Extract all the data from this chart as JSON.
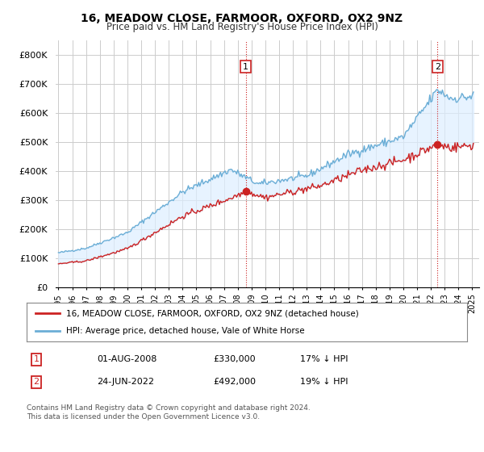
{
  "title": "16, MEADOW CLOSE, FARMOOR, OXFORD, OX2 9NZ",
  "subtitle": "Price paid vs. HM Land Registry's House Price Index (HPI)",
  "ylim": [
    0,
    850000
  ],
  "yticks": [
    0,
    100000,
    200000,
    300000,
    400000,
    500000,
    600000,
    700000,
    800000
  ],
  "ytick_labels": [
    "£0",
    "£100K",
    "£200K",
    "£300K",
    "£400K",
    "£500K",
    "£600K",
    "£700K",
    "£800K"
  ],
  "hpi_color": "#6baed6",
  "hpi_fill_color": "#ddeeff",
  "price_color": "#cc2222",
  "marker1_date": 2008.583,
  "marker1_price": 330000,
  "marker2_date": 2022.479,
  "marker2_price": 492000,
  "legend_line1": "16, MEADOW CLOSE, FARMOOR, OXFORD, OX2 9NZ (detached house)",
  "legend_line2": "HPI: Average price, detached house, Vale of White Horse",
  "table_row1": [
    "1",
    "01-AUG-2008",
    "£330,000",
    "17% ↓ HPI"
  ],
  "table_row2": [
    "2",
    "24-JUN-2022",
    "£492,000",
    "19% ↓ HPI"
  ],
  "footnote": "Contains HM Land Registry data © Crown copyright and database right 2024.\nThis data is licensed under the Open Government Licence v3.0.",
  "background_color": "#ffffff",
  "grid_color": "#cccccc"
}
